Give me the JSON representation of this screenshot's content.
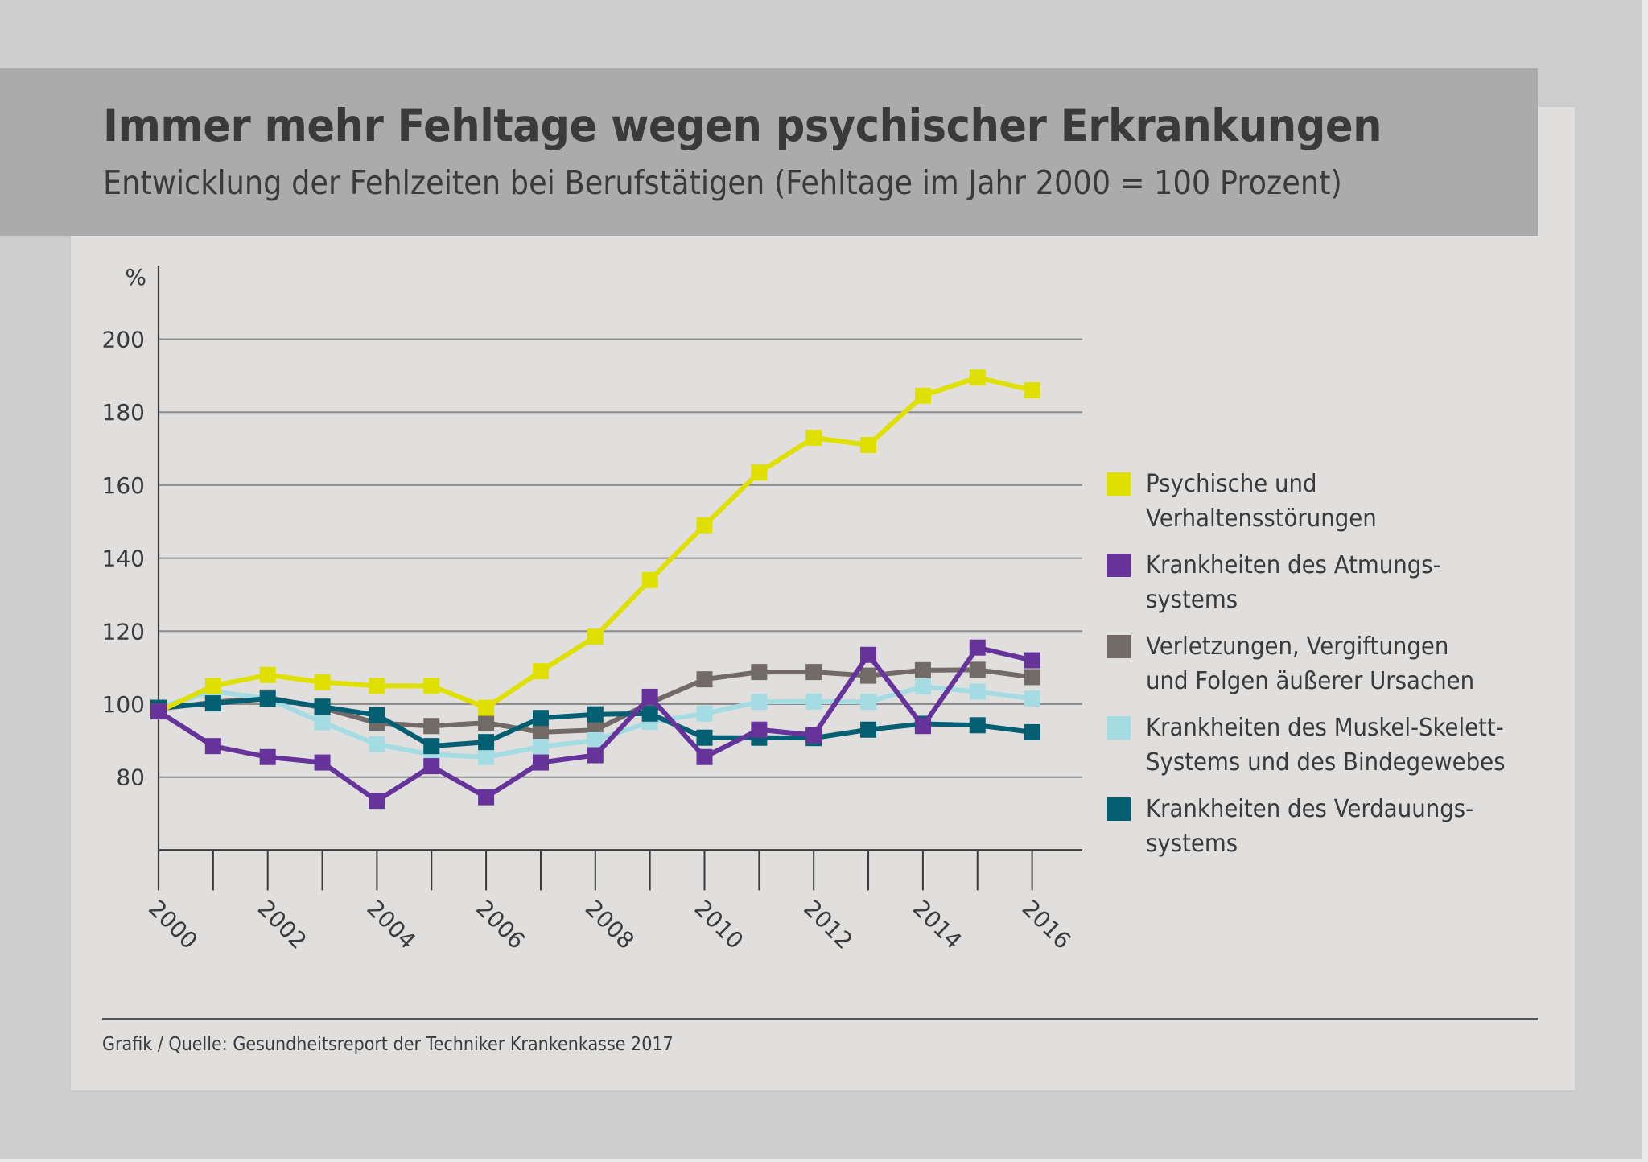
{
  "header": {
    "title": "Immer mehr Fehltage wegen psychischer Erkrankungen",
    "subtitle": "Entwicklung der Fehlzeiten bei Berufstätigen (Fehltage im Jahr 2000 = 100 Prozent)"
  },
  "footer": {
    "source": "Grafik / Quelle: Gesundheitsreport der Techniker Krankenkasse 2017"
  },
  "chart_data": {
    "type": "line",
    "title": "Immer mehr Fehltage wegen psychischer Erkrankungen",
    "subtitle": "Entwicklung der Fehlzeiten bei Berufstätigen (Fehltage im Jahr 2000 = 100 Prozent)",
    "xlabel": "",
    "ylabel": "%",
    "x": [
      2000,
      2001,
      2002,
      2003,
      2004,
      2005,
      2006,
      2007,
      2008,
      2009,
      2010,
      2011,
      2012,
      2013,
      2014,
      2015,
      2016
    ],
    "x_tick_labels": [
      "2000",
      "2002",
      "2004",
      "2006",
      "2008",
      "2010",
      "2012",
      "2014",
      "2016"
    ],
    "y_ticks": [
      80,
      100,
      120,
      140,
      160,
      180,
      200
    ],
    "y_tick_labels": [
      "80",
      "100",
      "120",
      "140",
      "160",
      "180",
      "200"
    ],
    "ylim": [
      60,
      220
    ],
    "xlim": [
      2000,
      2017
    ],
    "grid": true,
    "marker": "square",
    "legend_position": "right",
    "series": [
      {
        "name": "Psychische und Verhaltensstörungen",
        "label_lines": [
          "Psychische und",
          "Verhaltensstörungen"
        ],
        "color": "#dfe000",
        "values": [
          98,
          105,
          108,
          106,
          105,
          105,
          99,
          109,
          118.5,
          134,
          149,
          163.5,
          173,
          171,
          184.5,
          189.5,
          186
        ]
      },
      {
        "name": "Krankheiten des Atmungssystems",
        "label_lines": [
          "Krankheiten des Atmungs-",
          "systems"
        ],
        "color": "#66339a",
        "values": [
          98,
          88.5,
          85.5,
          84,
          73.5,
          83,
          74.5,
          84,
          86,
          102,
          85.5,
          93,
          91.5,
          113.5,
          94,
          115.5,
          112
        ]
      },
      {
        "name": "Verletzungen, Vergiftungen und Folgen äußerer Ursachen",
        "label_lines": [
          "Verletzungen, Vergiftungen",
          "und Folgen äußerer Ursachen"
        ],
        "color": "#726a67",
        "values": [
          98.7,
          100.5,
          101.8,
          99,
          94.8,
          94,
          94.9,
          92.3,
          92.9,
          100.3,
          106.8,
          108.8,
          108.8,
          107.8,
          109.3,
          109.4,
          107.4
        ]
      },
      {
        "name": "Krankheiten des Muskel-Skelett-Systems und des Bindegewebes",
        "label_lines": [
          "Krankheiten des Muskel-Skelett-",
          "Systems und des Bindegewebes"
        ],
        "color": "#a5dce3",
        "values": [
          99,
          103.5,
          101.5,
          95,
          89,
          86.2,
          85.5,
          88.3,
          90.1,
          95.1,
          97.4,
          100.6,
          100.7,
          100.6,
          104.8,
          103.4,
          101.5
        ]
      },
      {
        "name": "Krankheiten des Verdauungssystems",
        "label_lines": [
          "Krankheiten des Verdauungs-",
          "systems"
        ],
        "color": "#055f73",
        "values": [
          99,
          100.2,
          101.5,
          99.3,
          97,
          88.5,
          89.6,
          96.2,
          97.2,
          97.4,
          90.8,
          90.8,
          90.7,
          93,
          94.6,
          94.2,
          92.3
        ]
      }
    ],
    "draw_order": [
      2,
      3,
      4,
      0,
      1
    ]
  }
}
